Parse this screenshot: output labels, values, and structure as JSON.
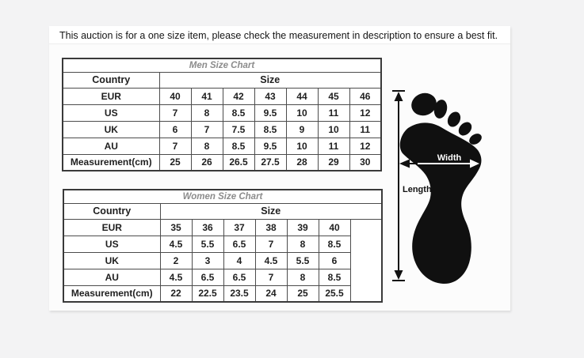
{
  "banner": {
    "text": "This auction is for a one size item, please check the measurement in description to ensure a best fit."
  },
  "men_chart": {
    "title": "Men Size Chart",
    "country_header": "Country",
    "size_header": "Size",
    "rows": [
      {
        "label": "EUR",
        "values": [
          "40",
          "41",
          "42",
          "43",
          "44",
          "45",
          "46"
        ]
      },
      {
        "label": "US",
        "values": [
          "7",
          "8",
          "8.5",
          "9.5",
          "10",
          "11",
          "12"
        ]
      },
      {
        "label": "UK",
        "values": [
          "6",
          "7",
          "7.5",
          "8.5",
          "9",
          "10",
          "11"
        ]
      },
      {
        "label": "AU",
        "values": [
          "7",
          "8",
          "8.5",
          "9.5",
          "10",
          "11",
          "12"
        ]
      },
      {
        "label": "Measurement(cm)",
        "values": [
          "25",
          "26",
          "26.5",
          "27.5",
          "28",
          "29",
          "30"
        ]
      }
    ],
    "trailing_empty_column": false
  },
  "women_chart": {
    "title": "Women Size Chart",
    "country_header": "Country",
    "size_header": "Size",
    "rows": [
      {
        "label": "EUR",
        "values": [
          "35",
          "36",
          "37",
          "38",
          "39",
          "40"
        ]
      },
      {
        "label": "US",
        "values": [
          "4.5",
          "5.5",
          "6.5",
          "7",
          "8",
          "8.5"
        ]
      },
      {
        "label": "UK",
        "values": [
          "2",
          "3",
          "4",
          "4.5",
          "5.5",
          "6"
        ]
      },
      {
        "label": "AU",
        "values": [
          "4.5",
          "6.5",
          "6.5",
          "7",
          "8",
          "8.5"
        ]
      },
      {
        "label": "Measurement(cm)",
        "values": [
          "22",
          "22.5",
          "23.5",
          "24",
          "25",
          "25.5"
        ]
      }
    ],
    "trailing_empty_column": true
  },
  "foot_diagram": {
    "length_label": "Length",
    "width_label": "Width"
  },
  "colors": {
    "page_background": "#f3f3f4",
    "panel_background": "#fcfcfc",
    "table_border": "#4c4c4c",
    "table_outer_border": "#3a3a3a",
    "chart_title_gray": "#8c8c8c",
    "text_color": "#1f1f1f",
    "foot_black": "#101010"
  }
}
